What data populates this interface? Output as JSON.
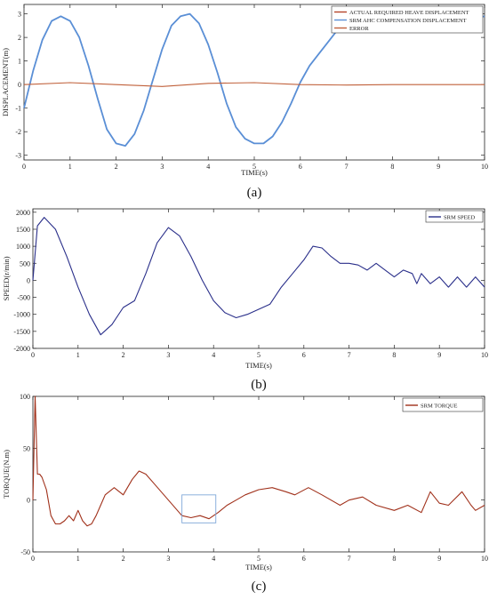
{
  "chart_data": [
    {
      "type": "line",
      "panel_label": "(a)",
      "xlabel": "TIME(s)",
      "ylabel": "DISPLACEMENT(m)",
      "xlim": [
        0,
        10
      ],
      "ylim": [
        -3.2,
        3.4
      ],
      "xticks": [
        0,
        1,
        2,
        3,
        4,
        5,
        6,
        7,
        8,
        9,
        10
      ],
      "yticks": [
        -3,
        -2,
        -1,
        0,
        1,
        2,
        3
      ],
      "legend_position": "top-right",
      "series": [
        {
          "name": "ACTUAL REQUIRED HEAVE DISPLACEMENT",
          "color": "#b5442a",
          "x": [
            0,
            0.2,
            0.4,
            0.6,
            0.8,
            1.0,
            1.2,
            1.4,
            1.6,
            1.8,
            2.0,
            2.2,
            2.4,
            2.6,
            2.8,
            3.0,
            3.2,
            3.4,
            3.6,
            3.8,
            4.0,
            4.2,
            4.4,
            4.6,
            4.8,
            5.0,
            5.2,
            5.4,
            5.6,
            5.8,
            6.0,
            6.2,
            6.4,
            6.6,
            6.8,
            7.0,
            7.2,
            7.4,
            7.6,
            7.8,
            8.0,
            8.2,
            8.4,
            8.6,
            8.8,
            9.0,
            9.2,
            9.4,
            9.6,
            9.8,
            10.0
          ],
          "values": [
            -1.0,
            0.6,
            1.9,
            2.7,
            2.9,
            2.7,
            2.0,
            0.8,
            -0.6,
            -1.9,
            -2.5,
            -2.6,
            -2.1,
            -1.1,
            0.2,
            1.5,
            2.5,
            2.9,
            3.0,
            2.6,
            1.7,
            0.5,
            -0.8,
            -1.8,
            -2.3,
            -2.5,
            -2.5,
            -2.2,
            -1.6,
            -0.8,
            0.1,
            0.8,
            1.3,
            1.8,
            2.3,
            2.6,
            2.8,
            2.9,
            3.0,
            2.9,
            3.0,
            2.9,
            2.8,
            2.9,
            2.8,
            2.9,
            2.8,
            3.0,
            2.9,
            2.8,
            2.9
          ]
        },
        {
          "name": "SRM AHC COMPENSATION DISPLACEMENT",
          "color": "#5a8fd6",
          "x": [
            0,
            0.2,
            0.4,
            0.6,
            0.8,
            1.0,
            1.2,
            1.4,
            1.6,
            1.8,
            2.0,
            2.2,
            2.4,
            2.6,
            2.8,
            3.0,
            3.2,
            3.4,
            3.6,
            3.8,
            4.0,
            4.2,
            4.4,
            4.6,
            4.8,
            5.0,
            5.2,
            5.4,
            5.6,
            5.8,
            6.0,
            6.2,
            6.4,
            6.6,
            6.8,
            7.0,
            7.2,
            7.4,
            7.6,
            7.8,
            8.0,
            8.2,
            8.4,
            8.6,
            8.8,
            9.0,
            9.2,
            9.4,
            9.6,
            9.8,
            10.0
          ],
          "values": [
            -1.0,
            0.6,
            1.9,
            2.7,
            2.9,
            2.7,
            2.0,
            0.8,
            -0.6,
            -1.9,
            -2.5,
            -2.6,
            -2.1,
            -1.1,
            0.2,
            1.5,
            2.5,
            2.9,
            3.0,
            2.6,
            1.7,
            0.5,
            -0.8,
            -1.8,
            -2.3,
            -2.5,
            -2.5,
            -2.2,
            -1.6,
            -0.8,
            0.1,
            0.8,
            1.3,
            1.8,
            2.3,
            2.6,
            2.8,
            2.9,
            3.0,
            2.9,
            3.0,
            2.9,
            2.8,
            2.9,
            2.8,
            2.9,
            2.8,
            3.0,
            2.9,
            2.8,
            2.9
          ]
        },
        {
          "name": "ERROR",
          "color": "#c0603a",
          "x": [
            0,
            1,
            2,
            3,
            4,
            5,
            6,
            7,
            8,
            9,
            10
          ],
          "values": [
            0.0,
            0.08,
            0.0,
            -0.08,
            0.05,
            0.08,
            0.0,
            -0.02,
            0.0,
            0.0,
            0.0
          ]
        }
      ]
    },
    {
      "type": "line",
      "panel_label": "(b)",
      "xlabel": "TIME(s)",
      "ylabel": "SPEED(r/min)",
      "xlim": [
        0,
        10
      ],
      "ylim": [
        -2000,
        2100
      ],
      "xticks": [
        0,
        1,
        2,
        3,
        4,
        5,
        6,
        7,
        8,
        9,
        10
      ],
      "yticks": [
        -2000,
        -1500,
        -1000,
        -500,
        0,
        500,
        1000,
        1500,
        2000
      ],
      "legend_position": "top-right",
      "series": [
        {
          "name": "SRM SPEED",
          "color": "#2a2f8a",
          "x": [
            0,
            0.1,
            0.25,
            0.5,
            0.75,
            1.0,
            1.25,
            1.5,
            1.75,
            2.0,
            2.25,
            2.5,
            2.75,
            3.0,
            3.25,
            3.5,
            3.75,
            4.0,
            4.25,
            4.5,
            4.75,
            5.0,
            5.25,
            5.5,
            5.75,
            6.0,
            6.2,
            6.4,
            6.6,
            6.8,
            7.0,
            7.2,
            7.4,
            7.6,
            7.8,
            8.0,
            8.2,
            8.4,
            8.5,
            8.6,
            8.8,
            9.0,
            9.2,
            9.4,
            9.6,
            9.8,
            10.0
          ],
          "values": [
            0,
            1600,
            1850,
            1500,
            700,
            -200,
            -1000,
            -1600,
            -1300,
            -800,
            -600,
            200,
            1100,
            1550,
            1300,
            700,
            0,
            -600,
            -950,
            -1100,
            -1000,
            -850,
            -700,
            -200,
            200,
            600,
            1000,
            950,
            700,
            500,
            500,
            450,
            300,
            500,
            300,
            100,
            300,
            200,
            -100,
            200,
            -100,
            100,
            -200,
            100,
            -200,
            100,
            -200
          ]
        }
      ]
    },
    {
      "type": "line",
      "panel_label": "(c)",
      "xlabel": "TIME(s)",
      "ylabel": "TORQUE(N.m)",
      "xlim": [
        0,
        10
      ],
      "ylim": [
        -50,
        100
      ],
      "xticks": [
        0,
        1,
        2,
        3,
        4,
        5,
        6,
        7,
        8,
        9,
        10
      ],
      "yticks": [
        -50,
        0,
        50,
        100
      ],
      "legend_position": "top-right",
      "series": [
        {
          "name": "SRM TORQUE",
          "color": "#a0301a",
          "x": [
            0,
            0.05,
            0.1,
            0.15,
            0.2,
            0.3,
            0.4,
            0.5,
            0.6,
            0.7,
            0.8,
            0.9,
            1.0,
            1.1,
            1.2,
            1.3,
            1.4,
            1.5,
            1.6,
            1.8,
            2.0,
            2.2,
            2.35,
            2.5,
            2.7,
            3.0,
            3.3,
            3.5,
            3.7,
            3.9,
            4.1,
            4.3,
            4.5,
            4.7,
            5.0,
            5.3,
            5.6,
            5.8,
            6.1,
            6.4,
            6.8,
            7.0,
            7.3,
            7.6,
            8.0,
            8.3,
            8.6,
            8.8,
            9.0,
            9.2,
            9.5,
            9.7,
            9.8,
            10.0
          ],
          "values": [
            0,
            100,
            25,
            25,
            22,
            10,
            -15,
            -23,
            -23,
            -20,
            -15,
            -20,
            -10,
            -20,
            -25,
            -23,
            -15,
            -5,
            5,
            12,
            5,
            20,
            28,
            25,
            15,
            0,
            -15,
            -17,
            -15,
            -18,
            -12,
            -5,
            0,
            5,
            10,
            12,
            8,
            5,
            12,
            5,
            -5,
            0,
            3,
            -5,
            -10,
            -5,
            -12,
            8,
            -3,
            -5,
            8,
            -5,
            -10,
            -5
          ]
        }
      ]
    }
  ]
}
